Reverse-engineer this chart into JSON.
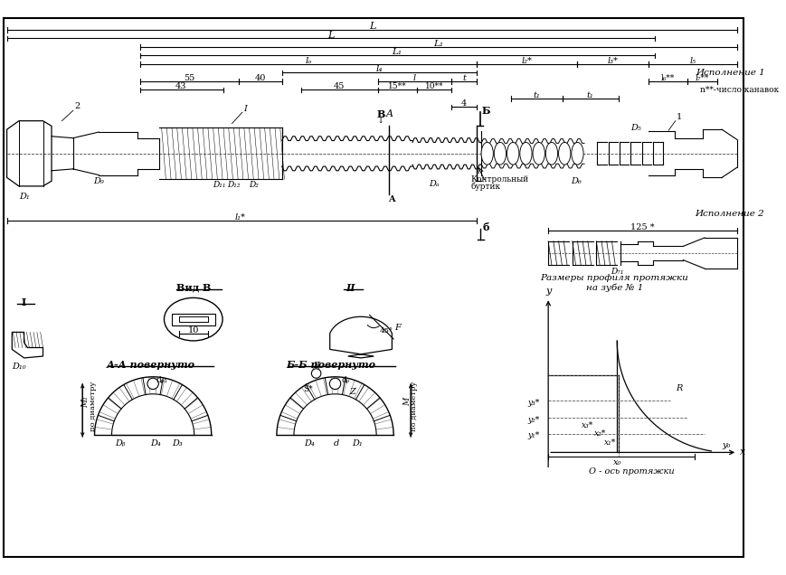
{
  "bg_color": "#ffffff",
  "line_color": "#000000",
  "fig_width": 8.69,
  "fig_height": 6.36,
  "dpi": 100,
  "annotations": {
    "L_top": "L",
    "L_second": "L",
    "execution1": "Исполнение 1",
    "execution2": "Исполнение 2",
    "n_kanav": "n**-число канавок",
    "kontrol_burtik": "Контрольный\nбуртик",
    "vid_B": "Вид B",
    "AA_povernuto": "А-А повернуто",
    "BB_povernuto": "Б-Б повернуто",
    "razmery": "Размеры профиля протяжки",
    "na_zube": "на зубе № 1",
    "O_os": "O - ось протяжки"
  }
}
